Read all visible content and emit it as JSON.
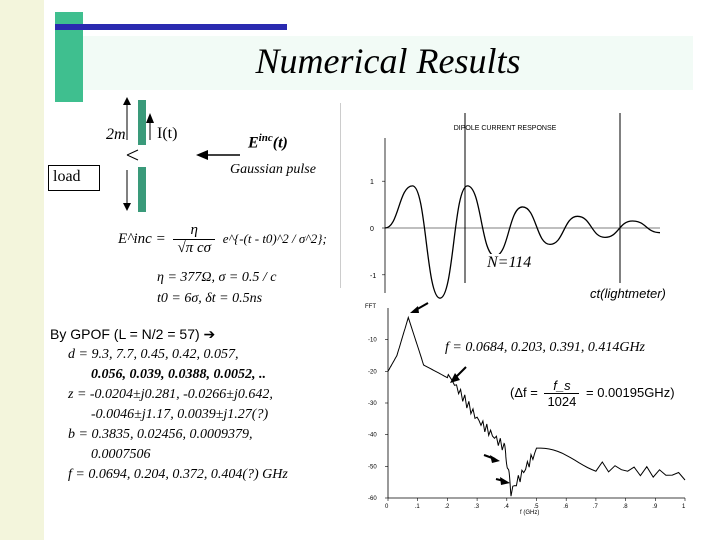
{
  "title": "Numerical Results",
  "schematic": {
    "dim_label": "2m",
    "current_label": "I(t)",
    "load_label": "load",
    "field_label_base": "E",
    "field_label_sup": "inc",
    "field_label_arg": "(t)",
    "pulse_label": "Gaussian pulse"
  },
  "equations": {
    "einc_lhs": "E^inc =",
    "einc_num": "η",
    "einc_den": "√π cσ",
    "einc_exp": "e^{-(t - t0)^2 / σ^2};",
    "params_line1": "η = 377Ω, σ = 0.5 / c",
    "params_line2": "t0 = 6σ, δt = 0.5ns"
  },
  "gpof": {
    "line1": "By GPOF (L = N/2 = 57)",
    "line2": "d = 9.3, 7.7, 0.45, 0.42, 0.057,",
    "line3": "0.056, 0.039, 0.0388, 0.0052, ..",
    "line4": "z = -0.0204±j0.281, -0.0266±j0.642,",
    "line5": "-0.0046±j1.17, 0.0039±j1.27(?)",
    "line6": "b = 0.3835, 0.02456, 0.0009379,",
    "line7": "0.0007506",
    "line8": "f = 0.0694, 0.204, 0.372, 0.404(?) GHz"
  },
  "fft_note": {
    "freq_line": "f = 0.0684, 0.203, 0.391, 0.414GHz",
    "delta_lhs": "(Δf =",
    "delta_num": "f_s",
    "delta_den": "1024",
    "delta_rhs": "= 0.00195GHz)"
  },
  "n_label": "N=114",
  "colors": {
    "accent_green": "#3fbf8f",
    "accent_blue": "#2a2ab0",
    "stripe": "#f3f5dc"
  },
  "chart_data": [
    {
      "type": "line",
      "title": "DIPOLE CURRENT RESPONSE",
      "xlabel": "ct(lightmeter)",
      "ylabel": "",
      "ytick_labels": [
        "1",
        "0",
        "-1"
      ],
      "ylim": [
        -1.6,
        1.6
      ],
      "description_of_series": "damped oscillation; two vertical markers bound N=114 window",
      "series": [
        {
          "name": "",
          "x": [
            0,
            10,
            20,
            30,
            40,
            50,
            60,
            70,
            80,
            90,
            100
          ],
          "y": [
            0,
            0.9,
            -1.5,
            0.9,
            -0.6,
            0.45,
            -0.35,
            0.25,
            -0.2,
            0.15,
            -0.1
          ]
        }
      ]
    },
    {
      "type": "line",
      "title": "FFT",
      "xlabel": "f (GHz)",
      "ylabel": "",
      "ytick_labels": [
        "-10",
        "-20",
        "-30",
        "-40",
        "-50",
        "-60"
      ],
      "xtick_labels": [
        "0",
        ".1",
        ".2",
        ".3",
        ".4",
        ".5",
        ".6",
        ".7",
        ".8",
        ".9",
        "1"
      ],
      "ylim": [
        -60,
        0
      ],
      "xlim": [
        0,
        1
      ],
      "series": [
        {
          "name": "",
          "x": [
            0,
            0.03,
            0.0684,
            0.12,
            0.2,
            0.203,
            0.3,
            0.391,
            0.4,
            0.414,
            0.5,
            0.7,
            1.0
          ],
          "y": [
            -20,
            -15,
            -3,
            -18,
            -22,
            -21,
            -35,
            -44,
            -48,
            -58,
            -45,
            -50,
            -53
          ]
        }
      ]
    }
  ]
}
